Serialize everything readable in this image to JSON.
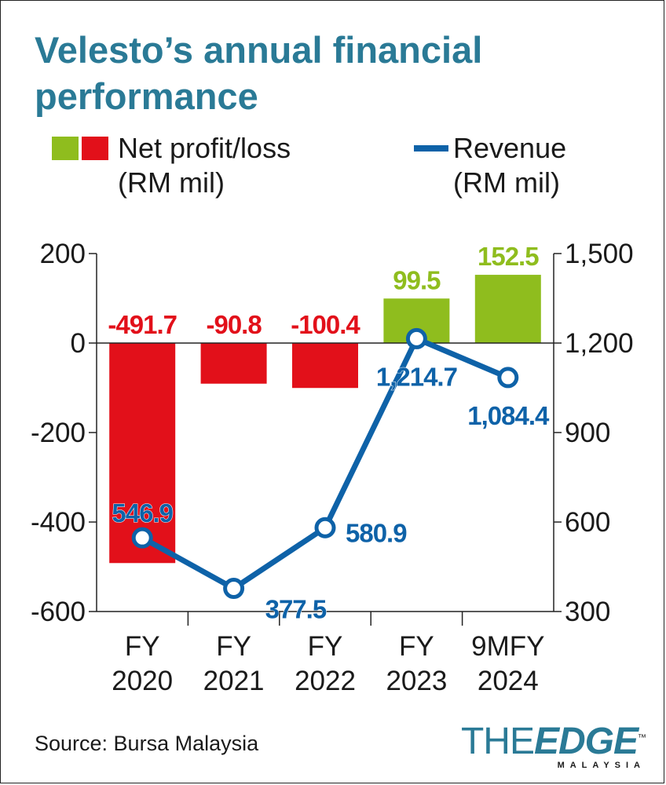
{
  "colors": {
    "title": "#2a7a96",
    "positive": "#8fbd1e",
    "negative": "#e2101a",
    "revenue": "#0e62a8",
    "text": "#1a1a1a"
  },
  "chart_data": {
    "type": "bar",
    "title": "Velesto’s annual financial performance",
    "categories": [
      [
        "FY",
        "2020"
      ],
      [
        "FY",
        "2021"
      ],
      [
        "FY",
        "2022"
      ],
      [
        "FY",
        "2023"
      ],
      [
        "9MFY",
        "2024"
      ]
    ],
    "series": [
      {
        "name": "Net profit/loss",
        "unit": "(RM mil)",
        "type": "bar",
        "axis": "left",
        "values": [
          -491.7,
          -90.8,
          -100.4,
          99.5,
          152.5
        ],
        "labels": [
          "-491.7",
          "-90.8",
          "-100.4",
          "99.5",
          "152.5"
        ]
      },
      {
        "name": "Revenue",
        "unit": "(RM mil)",
        "type": "line",
        "axis": "right",
        "values": [
          546.9,
          377.5,
          580.9,
          1214.7,
          1084.4
        ],
        "labels": [
          "546.9",
          "377.5",
          "580.9",
          "1,214.7",
          "1,084.4"
        ]
      }
    ],
    "y_left": {
      "range": [
        -600,
        200
      ],
      "ticks": [
        200,
        0,
        -200,
        -400,
        -600
      ],
      "tick_labels": [
        "200",
        "0",
        "-200",
        "-400",
        "-600"
      ]
    },
    "y_right": {
      "range": [
        300,
        1500
      ],
      "ticks": [
        1500,
        1200,
        900,
        600,
        300
      ],
      "tick_labels": [
        "1,500",
        "1,200",
        "900",
        "600",
        "300"
      ]
    },
    "legend_position": "top"
  },
  "legend": {
    "profit_line1": "Net profit/loss",
    "profit_line2": "(RM mil)",
    "revenue_line1": "Revenue",
    "revenue_line2": "(RM mil)"
  },
  "source": "Source: Bursa Malaysia",
  "logo": {
    "the": "THE",
    "edge": "EDGE",
    "sub": "MALAYSIA",
    "tm": "™"
  }
}
